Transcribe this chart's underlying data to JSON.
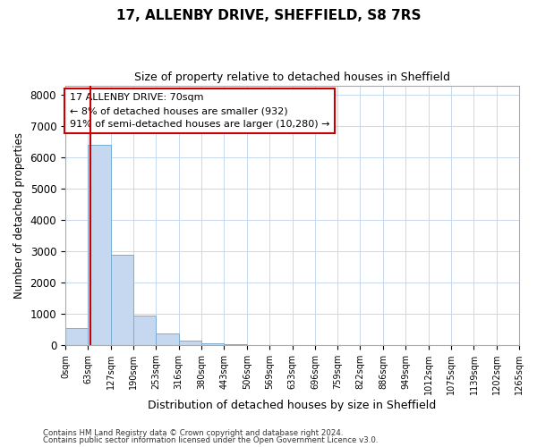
{
  "title": "17, ALLENBY DRIVE, SHEFFIELD, S8 7RS",
  "subtitle": "Size of property relative to detached houses in Sheffield",
  "xlabel": "Distribution of detached houses by size in Sheffield",
  "ylabel": "Number of detached properties",
  "bin_edges": [
    0,
    63,
    127,
    190,
    253,
    316,
    380,
    443,
    506,
    569,
    633,
    696,
    759,
    822,
    886,
    949,
    1012,
    1075,
    1139,
    1202,
    1265
  ],
  "bin_labels": [
    "0sqm",
    "63sqm",
    "127sqm",
    "190sqm",
    "253sqm",
    "316sqm",
    "380sqm",
    "443sqm",
    "506sqm",
    "569sqm",
    "633sqm",
    "696sqm",
    "759sqm",
    "822sqm",
    "886sqm",
    "949sqm",
    "1012sqm",
    "1075sqm",
    "1139sqm",
    "1202sqm",
    "1265sqm"
  ],
  "bar_heights": [
    550,
    6400,
    2900,
    950,
    370,
    140,
    70,
    40,
    0,
    0,
    0,
    0,
    0,
    0,
    0,
    0,
    0,
    0,
    0,
    0
  ],
  "bar_color": "#c5d8f0",
  "bar_edge_color": "#7aadd4",
  "grid_color": "#c8d8ee",
  "property_size": 70,
  "vline_color": "#cc0000",
  "annotation_line1": "17 ALLENBY DRIVE: 70sqm",
  "annotation_line2": "← 8% of detached houses are smaller (932)",
  "annotation_line3": "91% of semi-detached houses are larger (10,280) →",
  "annotation_box_color": "#ffffff",
  "annotation_box_edge": "#cc0000",
  "ylim": [
    0,
    8300
  ],
  "yticks": [
    0,
    1000,
    2000,
    3000,
    4000,
    5000,
    6000,
    7000,
    8000
  ],
  "footer_line1": "Contains HM Land Registry data © Crown copyright and database right 2024.",
  "footer_line2": "Contains public sector information licensed under the Open Government Licence v3.0.",
  "bg_color": "#ffffff",
  "plot_bg_color": "#ffffff"
}
